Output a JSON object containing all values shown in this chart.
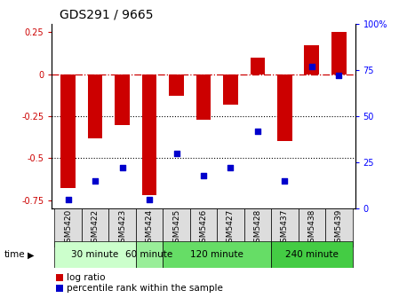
{
  "title": "GDS291 / 9665",
  "samples": [
    "GSM5420",
    "GSM5422",
    "GSM5423",
    "GSM5424",
    "GSM5425",
    "GSM5426",
    "GSM5427",
    "GSM5428",
    "GSM5437",
    "GSM5438",
    "GSM5439"
  ],
  "log_ratio": [
    -0.68,
    -0.38,
    -0.3,
    -0.72,
    -0.13,
    -0.27,
    -0.18,
    0.1,
    -0.4,
    0.17,
    0.25
  ],
  "percentile": [
    5,
    15,
    22,
    5,
    30,
    18,
    22,
    42,
    15,
    77,
    72
  ],
  "ylim_left": [
    -0.8,
    0.3
  ],
  "ylim_right": [
    0,
    100
  ],
  "bar_color": "#CC0000",
  "dot_color": "#0000CC",
  "bg_color": "#FFFFFF",
  "time_groups": [
    {
      "label": "30 minute",
      "start": 0,
      "end": 3,
      "color": "#CCFFCC"
    },
    {
      "label": "60 minute",
      "start": 3,
      "end": 4,
      "color": "#99EE99"
    },
    {
      "label": "120 minute",
      "start": 4,
      "end": 8,
      "color": "#66DD66"
    },
    {
      "label": "240 minute",
      "start": 8,
      "end": 11,
      "color": "#44CC44"
    }
  ],
  "legend_log": "log ratio",
  "legend_pct": "percentile rank within the sample",
  "title_fontsize": 10,
  "tick_fontsize": 7,
  "bar_width": 0.55
}
